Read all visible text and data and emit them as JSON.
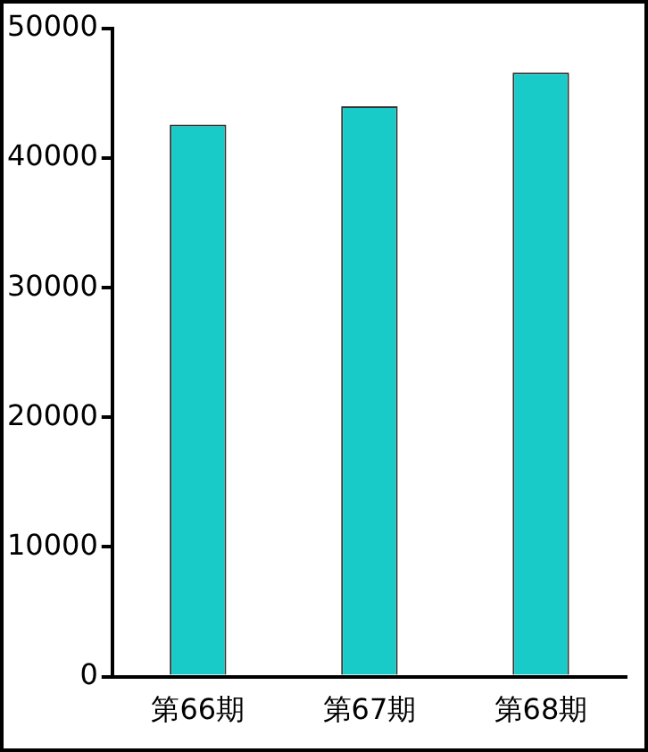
{
  "chart_data": {
    "type": "bar",
    "categories": [
      "第66期",
      "第67期",
      "第68期"
    ],
    "values": [
      42600,
      44000,
      46600
    ],
    "color": "#19cbc8",
    "ylim": [
      0,
      50000
    ],
    "yticks": [
      0,
      10000,
      20000,
      30000,
      40000,
      50000
    ],
    "grid": false
  }
}
